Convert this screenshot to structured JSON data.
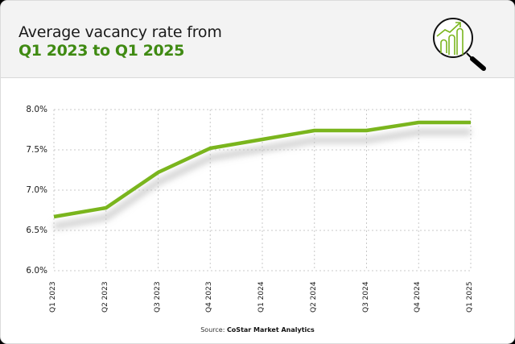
{
  "header": {
    "title_line1": "Average vacancy rate from",
    "title_line2": "Q1 2023 to Q1 2025",
    "icon": "magnifying-glass-growth-chart-icon"
  },
  "colors": {
    "accent_green": "#3f8a12",
    "line_green": "#7ab51d",
    "header_bg": "#f3f3f3",
    "grid": "#c8c8c8"
  },
  "chart_data": {
    "type": "line",
    "title": "Average vacancy rate from Q1 2023 to Q1 2025",
    "xlabel": "",
    "ylabel": "",
    "categories": [
      "Q1 2023",
      "Q2 2023",
      "Q3 2023",
      "Q4 2023",
      "Q1 2024",
      "Q2 2024",
      "Q3 2024",
      "Q4 2024",
      "Q1 2025"
    ],
    "series": [
      {
        "name": "Average vacancy rate",
        "values": [
          6.67,
          6.78,
          7.22,
          7.52,
          7.63,
          7.74,
          7.74,
          7.84,
          7.84
        ]
      }
    ],
    "ylim": [
      6.0,
      8.0
    ],
    "yticks": [
      6.0,
      6.5,
      7.0,
      7.5,
      8.0
    ],
    "ytick_labels": [
      "6.0%",
      "6.5%",
      "7.0%",
      "7.5%",
      "8.0%"
    ],
    "grid": true,
    "grid_style": "dotted",
    "legend": "none"
  },
  "footer": {
    "source_prefix": "Source: ",
    "source_name": "CoStar Market Analytics"
  }
}
